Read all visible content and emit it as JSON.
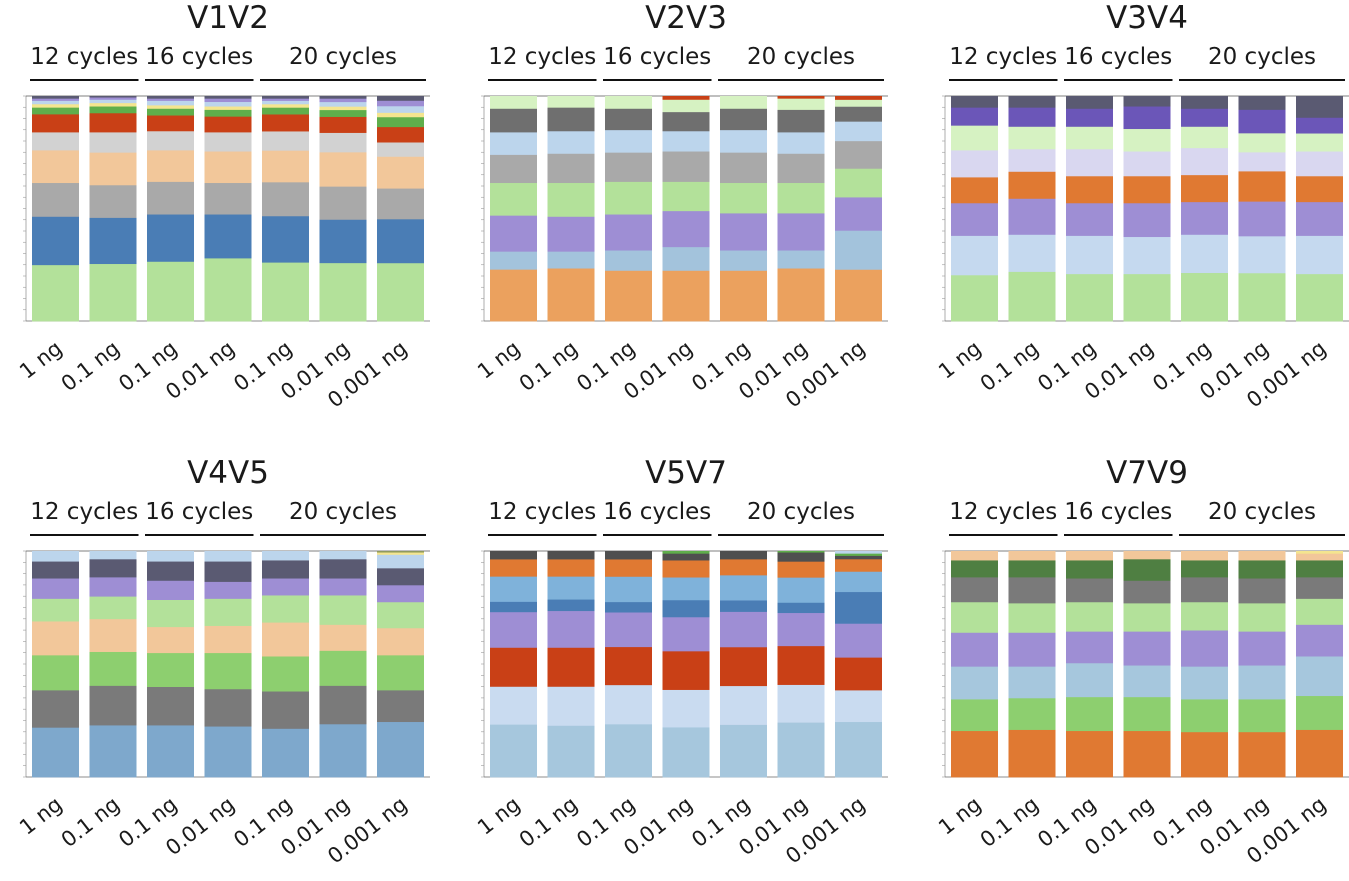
{
  "chart_data": [
    {
      "type": "bar",
      "title": "V1V2",
      "ylabel": "",
      "ylim": [
        0,
        100
      ],
      "groups": [
        {
          "label": "12 cycles",
          "bars": [
            0,
            1
          ]
        },
        {
          "label": "16 cycles",
          "bars": [
            2,
            3
          ]
        },
        {
          "label": "20 cycles",
          "bars": [
            4,
            5,
            6
          ]
        }
      ],
      "categories": [
        "1 ng",
        "0.1 ng",
        "0.1 ng",
        "0.01 ng",
        "0.1 ng",
        "0.01 ng",
        "0.001 ng"
      ],
      "series": [
        {
          "color": "#b3e19a",
          "values": [
            25,
            25.5,
            26.5,
            28,
            26,
            25.5,
            26.5
          ]
        },
        {
          "color": "#4a7db5",
          "values": [
            21.5,
            20.5,
            21,
            19.5,
            20.5,
            19,
            20
          ]
        },
        {
          "color": "#a9a9a9",
          "values": [
            15,
            14.5,
            14.5,
            14,
            15,
            14.5,
            14
          ]
        },
        {
          "color": "#f2c79a",
          "values": [
            14.5,
            14.5,
            14,
            14,
            14,
            15,
            14.5
          ]
        },
        {
          "color": "#d2d2d2",
          "values": [
            8,
            9,
            8.5,
            8.5,
            8.5,
            8.5,
            6.5
          ]
        },
        {
          "color": "#c94016",
          "values": [
            8,
            8.5,
            7,
            7,
            7.5,
            7,
            7
          ]
        },
        {
          "color": "#5fae4b",
          "values": [
            3,
            3,
            3,
            3,
            3,
            3,
            4.5
          ]
        },
        {
          "color": "#f4e58f",
          "values": [
            1.5,
            1.5,
            1.5,
            1.5,
            1.5,
            1.5,
            2
          ]
        },
        {
          "color": "#bcd5ec",
          "values": [
            1.5,
            1.5,
            2,
            2,
            1.5,
            2,
            3
          ]
        },
        {
          "color": "#9e8ed4",
          "values": [
            1,
            1,
            1,
            1.5,
            1,
            1.5,
            2.5
          ]
        },
        {
          "color": "#5a5a72",
          "values": [
            1,
            0.5,
            1,
            1,
            1,
            1,
            2
          ]
        }
      ]
    },
    {
      "type": "bar",
      "title": "V2V3",
      "ylabel": "",
      "ylim": [
        0,
        100
      ],
      "groups": [
        {
          "label": "12 cycles",
          "bars": [
            0,
            1
          ]
        },
        {
          "label": "16 cycles",
          "bars": [
            2,
            3
          ]
        },
        {
          "label": "20 cycles",
          "bars": [
            4,
            5,
            6
          ]
        }
      ],
      "categories": [
        "1 ng",
        "0.1 ng",
        "0.1 ng",
        "0.01 ng",
        "0.1 ng",
        "0.01 ng",
        "0.001 ng"
      ],
      "series": [
        {
          "color": "#eba15e",
          "values": [
            23,
            23.5,
            22.5,
            22.5,
            22.5,
            23.5,
            22.5
          ]
        },
        {
          "color": "#a3c3dc",
          "values": [
            8,
            7.5,
            9,
            10.5,
            9,
            8,
            17
          ]
        },
        {
          "color": "#9e8ed4",
          "values": [
            16,
            15.5,
            16,
            16,
            16.5,
            16.5,
            14.5
          ]
        },
        {
          "color": "#b3e19a",
          "values": [
            14.5,
            15,
            14.5,
            13,
            13.5,
            13.5,
            12.5
          ]
        },
        {
          "color": "#a9a9a9",
          "values": [
            12.5,
            13,
            13,
            13.5,
            13.5,
            13,
            12
          ]
        },
        {
          "color": "#bcd5ec",
          "values": [
            10,
            10,
            10,
            9,
            10,
            9.5,
            8.5
          ]
        },
        {
          "color": "#6f6f6f",
          "values": [
            10.5,
            10.5,
            9.5,
            8.5,
            9.5,
            10,
            6.5
          ]
        },
        {
          "color": "#d6f2c2",
          "values": [
            5.5,
            5,
            5.5,
            5.5,
            5.5,
            5,
            3
          ]
        },
        {
          "color": "#c94016",
          "values": [
            0,
            0,
            0,
            1.5,
            0,
            1,
            1.5
          ]
        }
      ]
    },
    {
      "type": "bar",
      "title": "V3V4",
      "ylabel": "",
      "ylim": [
        0,
        100
      ],
      "groups": [
        {
          "label": "12 cycles",
          "bars": [
            0,
            1
          ]
        },
        {
          "label": "16 cycles",
          "bars": [
            2,
            3
          ]
        },
        {
          "label": "20 cycles",
          "bars": [
            4,
            5,
            6
          ]
        }
      ],
      "categories": [
        "1 ng",
        "0.1 ng",
        "0.1 ng",
        "0.01 ng",
        "0.1 ng",
        "0.01 ng",
        "0.001 ng"
      ],
      "series": [
        {
          "color": "#b3e19a",
          "values": [
            20.5,
            22,
            21,
            21,
            21.5,
            21.5,
            21
          ]
        },
        {
          "color": "#c5d9ef",
          "values": [
            17.5,
            16.5,
            17,
            16.5,
            17,
            16.5,
            17
          ]
        },
        {
          "color": "#9e8ed4",
          "values": [
            14.5,
            16,
            14.5,
            15,
            14.5,
            15.5,
            15
          ]
        },
        {
          "color": "#e07932",
          "values": [
            11.5,
            12,
            12,
            12,
            12,
            13.5,
            11.5
          ]
        },
        {
          "color": "#d9d7f0",
          "values": [
            12,
            10,
            12,
            11,
            12,
            8.5,
            11
          ]
        },
        {
          "color": "#d6f2c2",
          "values": [
            11,
            10,
            10,
            10,
            9.5,
            8.5,
            8
          ]
        },
        {
          "color": "#6b56b8",
          "values": [
            8,
            8.5,
            8,
            10,
            8,
            10.5,
            7
          ]
        },
        {
          "color": "#5a5a72",
          "values": [
            5,
            5,
            5.5,
            4.5,
            5.5,
            6,
            9.5
          ]
        }
      ]
    },
    {
      "type": "bar",
      "title": "V4V5",
      "ylabel": "",
      "ylim": [
        0,
        100
      ],
      "groups": [
        {
          "label": "12 cycles",
          "bars": [
            0,
            1
          ]
        },
        {
          "label": "16 cycles",
          "bars": [
            2,
            3
          ]
        },
        {
          "label": "20 cycles",
          "bars": [
            4,
            5,
            6
          ]
        }
      ],
      "categories": [
        "1 ng",
        "0.1 ng",
        "0.1 ng",
        "0.01 ng",
        "0.1 ng",
        "0.01 ng",
        "0.001 ng"
      ],
      "series": [
        {
          "color": "#7ea8cc",
          "values": [
            22,
            23,
            23,
            22.5,
            21.5,
            23.5,
            24.5
          ]
        },
        {
          "color": "#7a7a7a",
          "values": [
            16.5,
            17.5,
            17,
            16.5,
            16.5,
            17,
            14
          ]
        },
        {
          "color": "#8dcf6f",
          "values": [
            15.5,
            15,
            15,
            16,
            15.5,
            15.5,
            15.5
          ]
        },
        {
          "color": "#f2c79a",
          "values": [
            15,
            14.5,
            11.5,
            12,
            15,
            11.5,
            12
          ]
        },
        {
          "color": "#b3e19a",
          "values": [
            10,
            10,
            12,
            12,
            12,
            13,
            11.5
          ]
        },
        {
          "color": "#9e8ed4",
          "values": [
            9,
            8.5,
            8.5,
            7.5,
            7.5,
            7.5,
            7.5
          ]
        },
        {
          "color": "#5a5a72",
          "values": [
            7.5,
            8,
            8.5,
            9,
            8,
            8.5,
            7.5
          ]
        },
        {
          "color": "#bcd5ec",
          "values": [
            4.5,
            3.5,
            4.5,
            4.5,
            4,
            3.5,
            6
          ]
        },
        {
          "color": "#f4e58f",
          "values": [
            0,
            0,
            0,
            0,
            0,
            0,
            1
          ]
        },
        {
          "color": "#8f9a5e",
          "values": [
            0,
            0,
            0,
            0,
            0,
            0,
            0.5
          ]
        }
      ]
    },
    {
      "type": "bar",
      "title": "V5V7",
      "ylabel": "",
      "ylim": [
        0,
        100
      ],
      "groups": [
        {
          "label": "12 cycles",
          "bars": [
            0,
            1
          ]
        },
        {
          "label": "16 cycles",
          "bars": [
            2,
            3
          ]
        },
        {
          "label": "20 cycles",
          "bars": [
            4,
            5,
            6
          ]
        }
      ],
      "categories": [
        "1 ng",
        "0.1 ng",
        "0.1 ng",
        "0.01 ng",
        "0.1 ng",
        "0.01 ng",
        "0.001 ng"
      ],
      "series": [
        {
          "color": "#a6c7dd",
          "values": [
            23,
            22.5,
            23,
            22,
            23,
            24,
            24.5
          ]
        },
        {
          "color": "#c9dbf0",
          "values": [
            16.5,
            17,
            17,
            16.5,
            17,
            16.5,
            14
          ]
        },
        {
          "color": "#c94016",
          "values": [
            17,
            17,
            16.5,
            17,
            17,
            17,
            14.5
          ]
        },
        {
          "color": "#9e8ed4",
          "values": [
            15.5,
            16,
            15,
            15,
            15.5,
            14.5,
            15
          ]
        },
        {
          "color": "#4a7db5",
          "values": [
            4.5,
            5,
            4.5,
            7.5,
            5,
            4.5,
            14
          ]
        },
        {
          "color": "#7fb2da",
          "values": [
            11,
            10,
            11,
            10,
            11,
            11,
            9
          ]
        },
        {
          "color": "#e07932",
          "values": [
            7.5,
            7.5,
            7.5,
            7.5,
            7,
            7,
            5.5
          ]
        },
        {
          "color": "#4f4f4f",
          "values": [
            3.5,
            3.5,
            3.5,
            3,
            3.5,
            4,
            1.5
          ]
        },
        {
          "color": "#5fae4b",
          "values": [
            0,
            0,
            0,
            1,
            0,
            0.5,
            1
          ]
        },
        {
          "color": "#bcd5ec",
          "values": [
            0,
            0,
            0,
            0,
            0,
            0,
            1
          ]
        }
      ]
    },
    {
      "type": "bar",
      "title": "V7V9",
      "ylabel": "",
      "ylim": [
        0,
        100
      ],
      "groups": [
        {
          "label": "12 cycles",
          "bars": [
            0,
            1
          ]
        },
        {
          "label": "16 cycles",
          "bars": [
            2,
            3
          ]
        },
        {
          "label": "20 cycles",
          "bars": [
            4,
            5,
            6
          ]
        }
      ],
      "categories": [
        "1 ng",
        "0.1 ng",
        "0.1 ng",
        "0.01 ng",
        "0.1 ng",
        "0.01 ng",
        "0.001 ng"
      ],
      "series": [
        {
          "color": "#e07932",
          "values": [
            20.5,
            21,
            20.5,
            20.5,
            20,
            20,
            21
          ]
        },
        {
          "color": "#8dcf6f",
          "values": [
            14,
            14,
            15,
            15,
            14.5,
            14.5,
            15
          ]
        },
        {
          "color": "#a6c7dd",
          "values": [
            14.5,
            14,
            15,
            14,
            14.5,
            15,
            17.5
          ]
        },
        {
          "color": "#9e8ed4",
          "values": [
            15,
            15,
            14,
            15,
            16,
            15,
            14
          ]
        },
        {
          "color": "#b3e19a",
          "values": [
            13.5,
            13,
            13,
            12.5,
            12.5,
            12.5,
            11.5
          ]
        },
        {
          "color": "#7a7a7a",
          "values": [
            11,
            11.5,
            10.5,
            10,
            11,
            11,
            9.5
          ]
        },
        {
          "color": "#4f7f42",
          "values": [
            7.5,
            7.5,
            8,
            9.5,
            7.5,
            8,
            7.5
          ]
        },
        {
          "color": "#f2c79a",
          "values": [
            4,
            4,
            4,
            3.5,
            4,
            4,
            3
          ]
        },
        {
          "color": "#f4e58f",
          "values": [
            0,
            0,
            0,
            0,
            0,
            0,
            1
          ]
        }
      ]
    }
  ]
}
